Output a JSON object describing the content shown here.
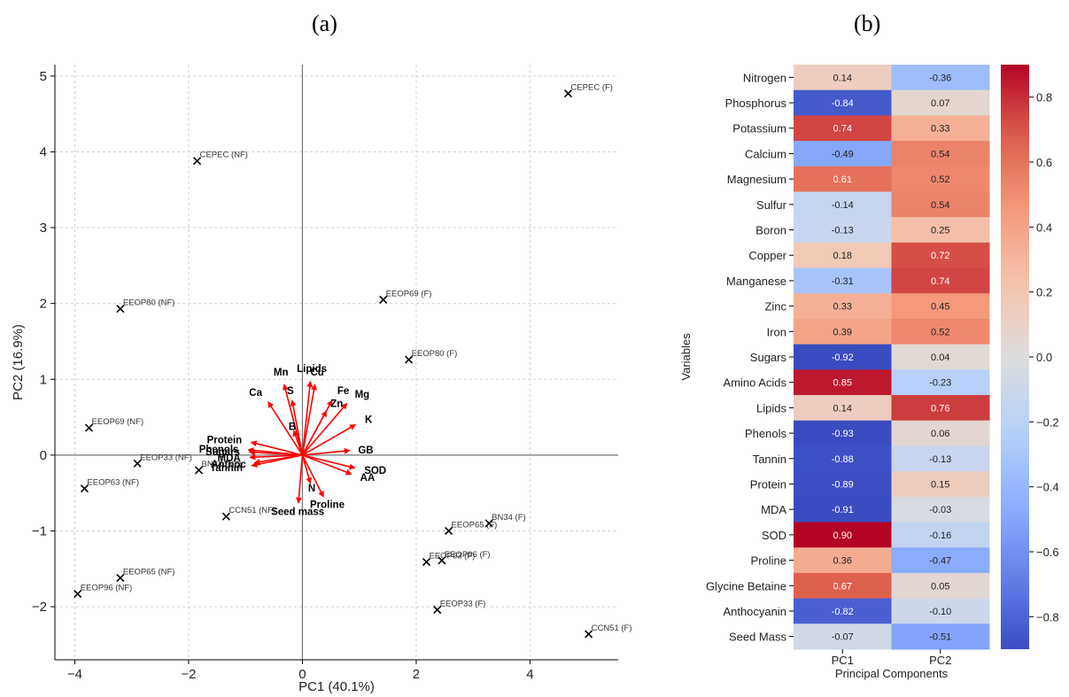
{
  "panels": {
    "a": "(a)",
    "b": "(b)"
  },
  "chart_data": [
    {
      "type": "scatter",
      "subtype": "pca-biplot",
      "xlabel": "PC1 (40.1%)",
      "ylabel": "PC2 (16.9%)",
      "xlim": [
        -4.35,
        5.55
      ],
      "ylim": [
        -2.7,
        5.15
      ],
      "xticks": [
        -4,
        -2,
        0,
        2,
        4
      ],
      "yticks": [
        -2,
        -1,
        0,
        1,
        2,
        3,
        4,
        5
      ],
      "xtick_labels": [
        "−4",
        "−2",
        "0",
        "2",
        "4"
      ],
      "ytick_labels": [
        "−2",
        "−1",
        "0",
        "1",
        "2",
        "3",
        "4",
        "5"
      ],
      "grid": true,
      "points": [
        {
          "label": "CEPEC (F)",
          "x": 4.67,
          "y": 4.77
        },
        {
          "label": "CEPEC (NF)",
          "x": -1.85,
          "y": 3.88
        },
        {
          "label": "EEOP69 (F)",
          "x": 1.42,
          "y": 2.05
        },
        {
          "label": "EEOP80 (NF)",
          "x": -3.2,
          "y": 1.93
        },
        {
          "label": "EEOP80 (F)",
          "x": 1.87,
          "y": 1.26
        },
        {
          "label": "EEOP69 (NF)",
          "x": -3.75,
          "y": 0.36
        },
        {
          "label": "EEOP33 (NF)",
          "x": -2.9,
          "y": -0.11
        },
        {
          "label": "BN34 (NF)",
          "x": -1.82,
          "y": -0.2
        },
        {
          "label": "EEOP63 (NF)",
          "x": -3.83,
          "y": -0.44
        },
        {
          "label": "CCN51 (NF)",
          "x": -1.34,
          "y": -0.81
        },
        {
          "label": "BN34 (F)",
          "x": 3.28,
          "y": -0.9
        },
        {
          "label": "EEOP65 (F)",
          "x": 2.57,
          "y": -1.0
        },
        {
          "label": "EEOP63 (F)",
          "x": 2.18,
          "y": -1.41
        },
        {
          "label": "EEOP96 (F)",
          "x": 2.45,
          "y": -1.39
        },
        {
          "label": "EEOP65 (NF)",
          "x": -3.2,
          "y": -1.62
        },
        {
          "label": "EEOP96 (NF)",
          "x": -3.95,
          "y": -1.83
        },
        {
          "label": "EEOP33 (F)",
          "x": 2.37,
          "y": -2.04
        },
        {
          "label": "CCN51 (F)",
          "x": 5.03,
          "y": -2.36
        }
      ],
      "vectors": [
        {
          "label": "Mn",
          "x": -0.32,
          "y": 0.93
        },
        {
          "label": "Lipids",
          "x": 0.14,
          "y": 0.97
        },
        {
          "label": "Cu",
          "x": 0.22,
          "y": 0.93
        },
        {
          "label": "Ca",
          "x": -0.6,
          "y": 0.7
        },
        {
          "label": "S",
          "x": -0.18,
          "y": 0.72
        },
        {
          "label": "Fe",
          "x": 0.52,
          "y": 0.72
        },
        {
          "label": "Mg",
          "x": 0.78,
          "y": 0.68
        },
        {
          "label": "Zn",
          "x": 0.42,
          "y": 0.58
        },
        {
          "label": "K",
          "x": 0.93,
          "y": 0.4
        },
        {
          "label": "B",
          "x": -0.15,
          "y": 0.32
        },
        {
          "label": "GB",
          "x": 0.83,
          "y": 0.06
        },
        {
          "label": "Protein",
          "x": -0.9,
          "y": 0.17
        },
        {
          "label": "Phenols",
          "x": -0.95,
          "y": 0.07
        },
        {
          "label": "Sugars",
          "x": -0.93,
          "y": 0.04
        },
        {
          "label": "MDA",
          "x": -0.92,
          "y": -0.03
        },
        {
          "label": "Anthoc",
          "x": -0.84,
          "y": -0.1
        },
        {
          "label": "Tannin",
          "x": -0.89,
          "y": -0.14
        },
        {
          "label": "SOD",
          "x": 0.92,
          "y": -0.17
        },
        {
          "label": "AA",
          "x": 0.86,
          "y": -0.25
        },
        {
          "label": "N",
          "x": 0.14,
          "y": -0.37
        },
        {
          "label": "Proline",
          "x": 0.37,
          "y": -0.55
        },
        {
          "label": "Seed mass",
          "x": -0.07,
          "y": -0.63
        }
      ]
    },
    {
      "type": "heatmap",
      "xlabel": "Principal Components",
      "ylabel": "Variables",
      "columns": [
        "PC1",
        "PC2"
      ],
      "rows": [
        "Nitrogen",
        "Phosphorus",
        "Potassium",
        "Calcium",
        "Magnesium",
        "Sulfur",
        "Boron",
        "Copper",
        "Manganese",
        "Zinc",
        "Iron",
        "Sugars",
        "Amino Acids",
        "Lipids",
        "Phenols",
        "Tannin",
        "Protein",
        "MDA",
        "SOD",
        "Proline",
        "Glycine Betaine",
        "Anthocyanin",
        "Seed Mass"
      ],
      "values": [
        [
          0.14,
          -0.36
        ],
        [
          -0.84,
          0.07
        ],
        [
          0.74,
          0.33
        ],
        [
          -0.49,
          0.54
        ],
        [
          0.61,
          0.52
        ],
        [
          -0.14,
          0.54
        ],
        [
          -0.13,
          0.25
        ],
        [
          0.18,
          0.72
        ],
        [
          -0.31,
          0.74
        ],
        [
          0.33,
          0.45
        ],
        [
          0.39,
          0.52
        ],
        [
          -0.92,
          0.04
        ],
        [
          0.85,
          -0.23
        ],
        [
          0.14,
          0.76
        ],
        [
          -0.93,
          0.06
        ],
        [
          -0.88,
          -0.13
        ],
        [
          -0.89,
          0.15
        ],
        [
          -0.91,
          -0.03
        ],
        [
          0.9,
          -0.16
        ],
        [
          0.36,
          -0.47
        ],
        [
          0.67,
          0.05
        ],
        [
          -0.82,
          -0.1
        ],
        [
          -0.07,
          -0.51
        ]
      ],
      "labels": [
        [
          "0.14",
          "-0.36"
        ],
        [
          "-0.84",
          "0.07"
        ],
        [
          "0.74",
          "0.33"
        ],
        [
          "-0.49",
          "0.54"
        ],
        [
          "0.61",
          "0.52"
        ],
        [
          "-0.14",
          "0.54"
        ],
        [
          "-0.13",
          "0.25"
        ],
        [
          "0.18",
          "0.72"
        ],
        [
          "-0.31",
          "0.74"
        ],
        [
          "0.33",
          "0.45"
        ],
        [
          "0.39",
          "0.52"
        ],
        [
          "-0.92",
          "0.04"
        ],
        [
          "0.85",
          "-0.23"
        ],
        [
          "0.14",
          "0.76"
        ],
        [
          "-0.93",
          "0.06"
        ],
        [
          "-0.88",
          "-0.13"
        ],
        [
          "-0.89",
          "0.15"
        ],
        [
          "-0.91",
          "-0.03"
        ],
        [
          "0.90",
          "-0.16"
        ],
        [
          "0.36",
          "-0.47"
        ],
        [
          "0.67",
          "0.05"
        ],
        [
          "-0.82",
          "-0.10"
        ],
        [
          "-0.07",
          "-0.51"
        ]
      ],
      "colormap": "coolwarm",
      "vmin": -0.9,
      "vmax": 0.9,
      "colorbar_ticks": [
        -0.8,
        -0.6,
        -0.4,
        -0.2,
        0.0,
        0.2,
        0.4,
        0.6,
        0.8
      ],
      "colorbar_tick_labels": [
        "−0.8",
        "−0.6",
        "−0.4",
        "−0.2",
        "0.0",
        "0.2",
        "0.4",
        "0.6",
        "0.8"
      ]
    }
  ]
}
